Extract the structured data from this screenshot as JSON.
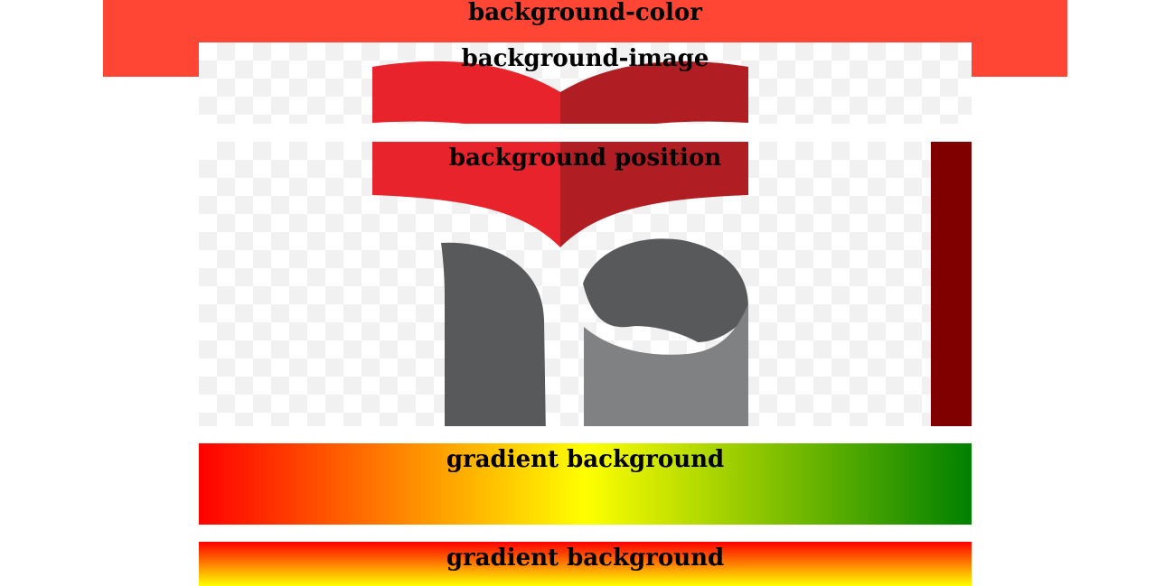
{
  "sections": {
    "background_color": {
      "label": "background-color",
      "color": "#ff4534"
    },
    "background_image": {
      "label": "background-image"
    },
    "background_position": {
      "label": "background position",
      "stripe_color": "#800000"
    },
    "gradient_horizontal": {
      "label": "gradient background",
      "colors": [
        "#ff0000",
        "#ffff00",
        "#008000"
      ]
    },
    "gradient_vertical": {
      "label": "gradient background",
      "colors": [
        "#ff0000",
        "#ffff00"
      ]
    }
  },
  "logo": {
    "name": "book-logo-icon",
    "book_left_color": "#e8232b",
    "book_right_color": "#b01e24",
    "letter_dark_color": "#58595b",
    "letter_light_color": "#808183"
  }
}
